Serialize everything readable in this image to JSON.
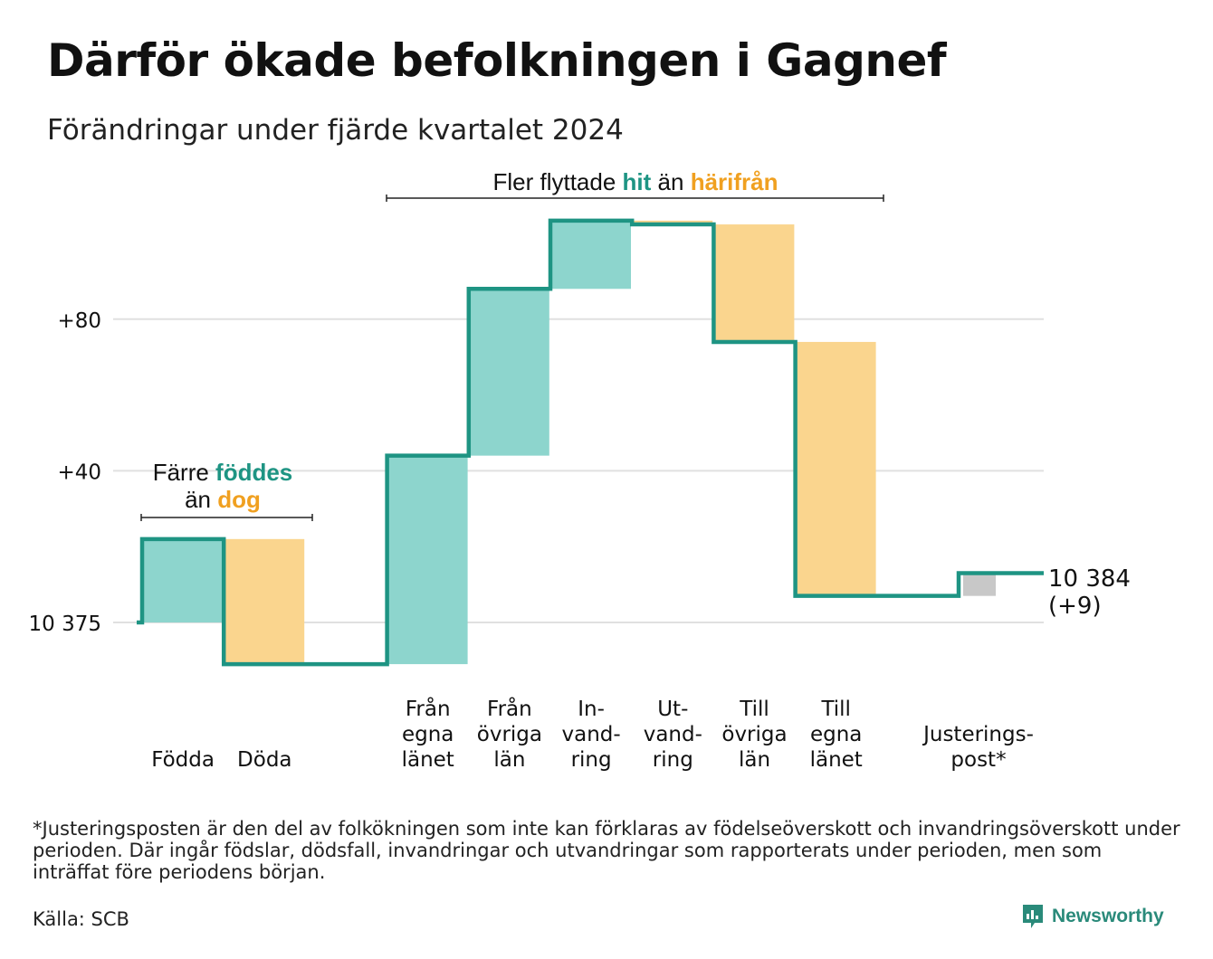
{
  "title": "Därför ökade befolkningen i Gagnef",
  "subtitle": "Förändringar under fjärde kvartalet 2024",
  "annotations": {
    "births_line1_pre": "Färre ",
    "births_line1_hl": "föddes",
    "births_line2_pre": "än ",
    "births_line2_hl": "dog",
    "migration_pre": "Fler flyttade ",
    "migration_hl1": "hit",
    "migration_mid": " än ",
    "migration_hl2": "härifrån"
  },
  "end_label": {
    "line1": "10 384",
    "line2": "(+9)"
  },
  "footnote": "*Justeringsposten är den del av folkökningen som inte kan förklaras av födelseöverskott och invandringsöverskott under perioden. Där ingår födslar, dödsfall, invandringar och utvandringar som rapporterats under perioden, men som inträffat före periodens början.",
  "source": "Källa: SCB",
  "brand": "Newsworthy",
  "colors": {
    "increase": "#8dd5cd",
    "decrease": "#fad58e",
    "adjustment": "#c8c8c8",
    "line": "#1e9483",
    "grid": "#e0e0e0"
  },
  "chart_data": {
    "type": "waterfall",
    "start_value": 10375,
    "end_value": 10384,
    "net_change": 9,
    "y_ticks": [
      {
        "offset": 0,
        "label": "10 375"
      },
      {
        "offset": 40,
        "label": "+40"
      },
      {
        "offset": 80,
        "label": "+80"
      }
    ],
    "categories": [
      {
        "label": [
          "Födda"
        ],
        "value": 22,
        "kind": "increase"
      },
      {
        "label": [
          "Döda"
        ],
        "value": -33,
        "kind": "decrease"
      },
      {
        "label": [],
        "value": 0,
        "kind": "gap"
      },
      {
        "label": [
          "Från",
          "egna",
          "länet"
        ],
        "value": 55,
        "kind": "increase"
      },
      {
        "label": [
          "Från",
          "övriga",
          "län"
        ],
        "value": 44,
        "kind": "increase"
      },
      {
        "label": [
          "In-",
          "vand-",
          "ring"
        ],
        "value": 18,
        "kind": "increase"
      },
      {
        "label": [
          "Ut-",
          "vand-",
          "ring"
        ],
        "value": -1,
        "kind": "decrease"
      },
      {
        "label": [
          "Till",
          "övriga",
          "län"
        ],
        "value": -31,
        "kind": "decrease"
      },
      {
        "label": [
          "Till",
          "egna",
          "länet"
        ],
        "value": -67,
        "kind": "decrease"
      },
      {
        "label": [],
        "value": 0,
        "kind": "gap"
      },
      {
        "label": [
          "Justerings-",
          "post*"
        ],
        "value": 6,
        "kind": "adjustment"
      }
    ]
  }
}
